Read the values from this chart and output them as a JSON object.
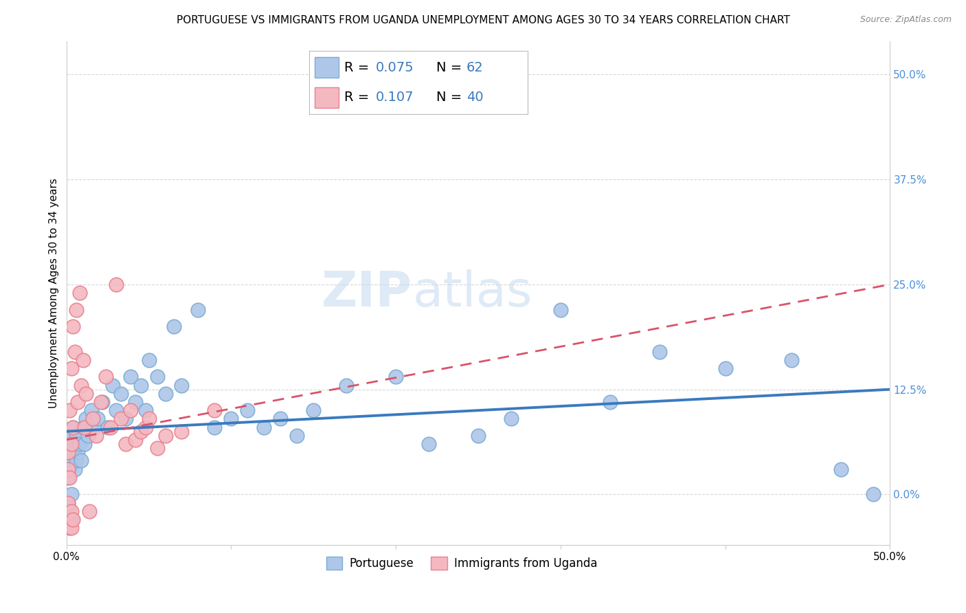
{
  "title": "PORTUGUESE VS IMMIGRANTS FROM UGANDA UNEMPLOYMENT AMONG AGES 30 TO 34 YEARS CORRELATION CHART",
  "source": "Source: ZipAtlas.com",
  "ylabel": "Unemployment Among Ages 30 to 34 years",
  "xlim": [
    0.0,
    0.5
  ],
  "ylim": [
    -0.06,
    0.54
  ],
  "yticks": [
    0.0,
    0.125,
    0.25,
    0.375,
    0.5
  ],
  "ytick_labels_right": [
    "0.0%",
    "12.5%",
    "25.0%",
    "37.5%",
    "50.0%"
  ],
  "xticks": [
    0.0,
    0.1,
    0.2,
    0.3,
    0.4,
    0.5
  ],
  "xtick_labels": [
    "0.0%",
    "",
    "",
    "",
    "",
    "50.0%"
  ],
  "portuguese_R": 0.075,
  "portuguese_N": 62,
  "uganda_R": 0.107,
  "uganda_N": 40,
  "portuguese_color": "#aec6e8",
  "uganda_color": "#f4b8c1",
  "portuguese_edge": "#7badd4",
  "uganda_edge": "#e8828f",
  "trend_portuguese_color": "#3a7abf",
  "trend_uganda_color": "#d9536a",
  "background_color": "#ffffff",
  "watermark_zip": "ZIP",
  "watermark_atlas": "atlas",
  "title_fontsize": 11,
  "axis_label_fontsize": 11,
  "tick_fontsize": 11,
  "legend_fontsize": 14,
  "source_fontsize": 9,
  "portuguese_x": [
    0.001,
    0.001,
    0.001,
    0.002,
    0.002,
    0.002,
    0.002,
    0.003,
    0.003,
    0.003,
    0.003,
    0.004,
    0.004,
    0.005,
    0.005,
    0.006,
    0.006,
    0.007,
    0.008,
    0.009,
    0.01,
    0.011,
    0.012,
    0.013,
    0.015,
    0.017,
    0.019,
    0.022,
    0.025,
    0.028,
    0.03,
    0.033,
    0.036,
    0.039,
    0.042,
    0.045,
    0.048,
    0.05,
    0.055,
    0.06,
    0.065,
    0.07,
    0.08,
    0.09,
    0.1,
    0.11,
    0.12,
    0.13,
    0.14,
    0.15,
    0.17,
    0.2,
    0.22,
    0.25,
    0.27,
    0.3,
    0.33,
    0.36,
    0.4,
    0.44,
    0.47,
    0.49
  ],
  "portuguese_y": [
    0.04,
    0.02,
    -0.01,
    0.06,
    0.03,
    -0.02,
    0.05,
    0.07,
    0.04,
    0.0,
    -0.03,
    0.08,
    0.05,
    0.06,
    0.03,
    0.07,
    0.04,
    0.05,
    0.06,
    0.04,
    0.08,
    0.06,
    0.09,
    0.07,
    0.1,
    0.08,
    0.09,
    0.11,
    0.08,
    0.13,
    0.1,
    0.12,
    0.09,
    0.14,
    0.11,
    0.13,
    0.1,
    0.16,
    0.14,
    0.12,
    0.2,
    0.13,
    0.22,
    0.08,
    0.09,
    0.1,
    0.08,
    0.09,
    0.07,
    0.1,
    0.13,
    0.14,
    0.06,
    0.07,
    0.09,
    0.22,
    0.11,
    0.17,
    0.15,
    0.16,
    0.03,
    0.0
  ],
  "uganda_x": [
    0.001,
    0.001,
    0.001,
    0.001,
    0.002,
    0.002,
    0.002,
    0.003,
    0.003,
    0.003,
    0.003,
    0.004,
    0.004,
    0.004,
    0.005,
    0.006,
    0.007,
    0.008,
    0.009,
    0.01,
    0.011,
    0.012,
    0.014,
    0.016,
    0.018,
    0.021,
    0.024,
    0.027,
    0.03,
    0.033,
    0.036,
    0.039,
    0.042,
    0.045,
    0.048,
    0.05,
    0.055,
    0.06,
    0.07,
    0.09
  ],
  "uganda_y": [
    0.05,
    0.03,
    -0.01,
    -0.03,
    0.1,
    0.02,
    -0.04,
    0.15,
    0.06,
    -0.02,
    -0.04,
    0.2,
    0.08,
    -0.03,
    0.17,
    0.22,
    0.11,
    0.24,
    0.13,
    0.16,
    0.08,
    0.12,
    -0.02,
    0.09,
    0.07,
    0.11,
    0.14,
    0.08,
    0.25,
    0.09,
    0.06,
    0.1,
    0.065,
    0.075,
    0.08,
    0.09,
    0.055,
    0.07,
    0.075,
    0.1
  ]
}
